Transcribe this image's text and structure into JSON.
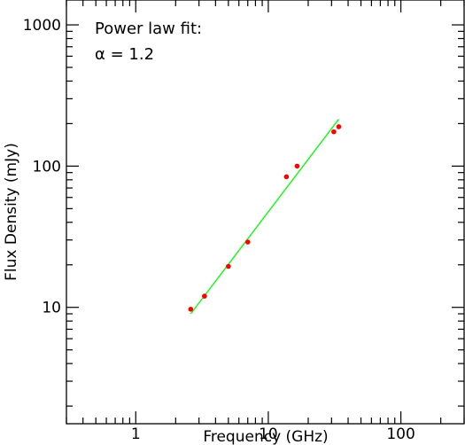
{
  "chart_data": {
    "type": "scatter",
    "title": "",
    "xlabel": "Frequency (GHz)",
    "ylabel": "Flux Density (mJy)",
    "xscale": "log",
    "yscale": "log",
    "xlim": [
      0.3,
      300
    ],
    "ylim": [
      1.5,
      1500
    ],
    "grid": false,
    "x_ticks": [
      1,
      10,
      100
    ],
    "y_ticks": [
      10,
      100,
      1000
    ],
    "x_tick_labels": [
      "1",
      "10",
      "100"
    ],
    "y_tick_labels": [
      "10",
      "100",
      "1000"
    ],
    "series": [
      {
        "kind": "points",
        "color": "#ff0000",
        "x": [
          2.6,
          3.3,
          5.0,
          7.0,
          13.7,
          16.5,
          31.2,
          34.0
        ],
        "y": [
          9.7,
          12.0,
          19.5,
          29.0,
          84.0,
          100.0,
          175.0,
          190.0
        ]
      },
      {
        "kind": "line",
        "color": "#00ff00",
        "x": [
          2.6,
          34.0
        ],
        "y": [
          9.0,
          215.0
        ]
      }
    ],
    "annotation": {
      "line1": "Power law fit:",
      "line2": "α = 1.2"
    }
  }
}
